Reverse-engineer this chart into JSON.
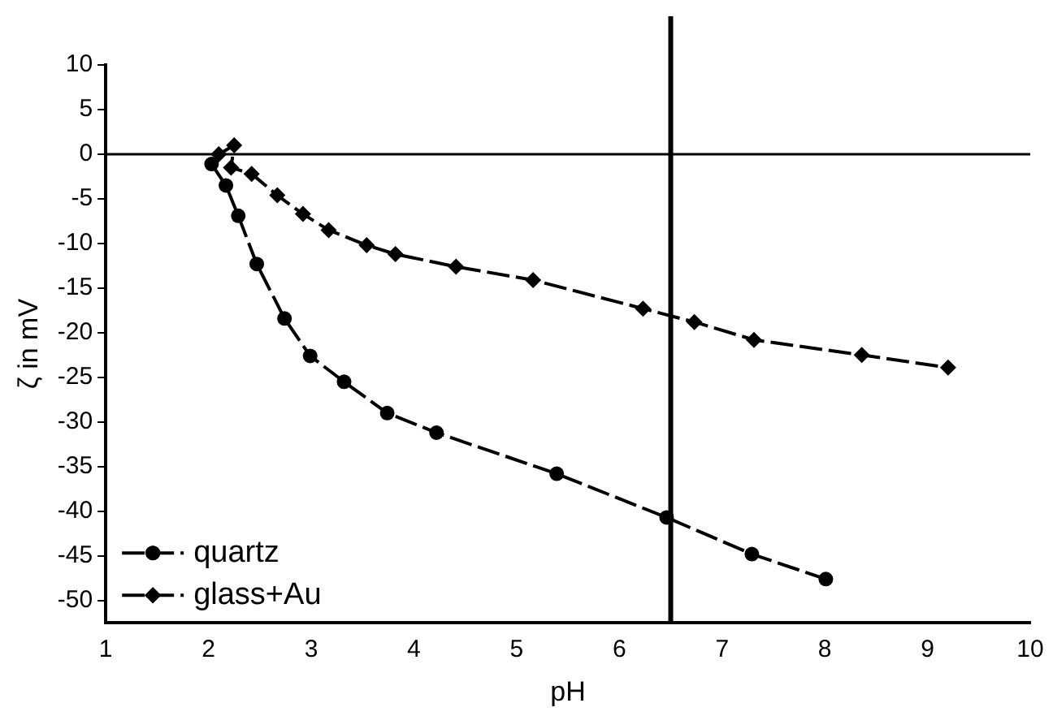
{
  "chart_data": {
    "type": "line",
    "xlabel": "pH",
    "ylabel": "ζ in mV",
    "xlim": [
      1,
      10
    ],
    "xticks": [
      1,
      2,
      3,
      4,
      5,
      6,
      7,
      8,
      9,
      10
    ],
    "ylim": [
      -52.5,
      10
    ],
    "yticks": [
      -50,
      -45,
      -40,
      -35,
      -30,
      -25,
      -20,
      -15,
      -10,
      -5,
      0,
      5,
      10
    ],
    "grid": false,
    "legend": "bottom left",
    "line_style": "dashed",
    "ref_lines": [
      {
        "axis": "y",
        "value": 0,
        "color": "#000000"
      },
      {
        "axis": "x",
        "value": 6.5,
        "color": "#000000"
      }
    ],
    "series": [
      {
        "name": "quartz",
        "color": "#000000",
        "marker": "circle",
        "x": [
          2.03,
          2.17,
          2.29,
          2.47,
          2.74,
          2.99,
          3.32,
          3.74,
          4.22,
          5.39,
          6.46,
          7.29,
          8.01
        ],
        "values": [
          -1.1,
          -3.5,
          -6.9,
          -12.3,
          -18.4,
          -22.6,
          -25.5,
          -29,
          -31.2,
          -35.8,
          -40.7,
          -44.8,
          -47.6
        ]
      },
      {
        "name": "glass+Au",
        "color": "#000000",
        "marker": "diamond",
        "x": [
          2.1,
          2.25,
          2.22,
          2.42,
          2.67,
          2.92,
          3.17,
          3.54,
          3.82,
          4.41,
          5.16,
          6.23,
          6.73,
          7.31,
          8.36,
          9.2
        ],
        "values": [
          0,
          1,
          -1.5,
          -2.2,
          -4.6,
          -6.7,
          -8.5,
          -10.2,
          -11.2,
          -12.6,
          -14.1,
          -17.3,
          -18.8,
          -20.8,
          -22.5,
          -23.9
        ]
      }
    ]
  }
}
